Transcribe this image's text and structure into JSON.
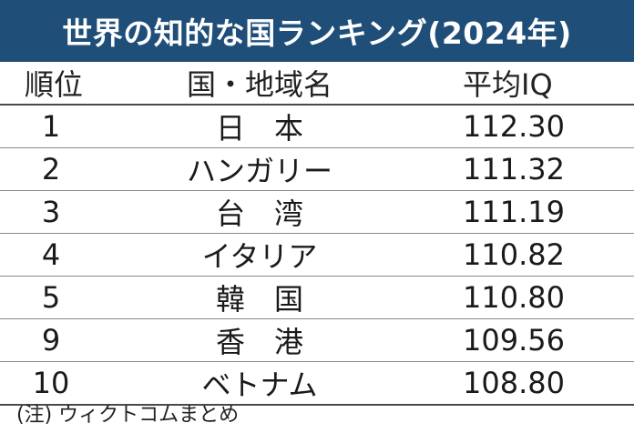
{
  "title": "世界の知的な国ランキング(2024年)",
  "headers": {
    "rank": "順位",
    "country": "国・地域名",
    "score": "平均IQ"
  },
  "rows": [
    {
      "rank": "1",
      "country": "日　本",
      "score": "112.30"
    },
    {
      "rank": "2",
      "country": "ハンガリー",
      "score": "111.32"
    },
    {
      "rank": "3",
      "country": "台　湾",
      "score": "111.19"
    },
    {
      "rank": "4",
      "country": "イタリア",
      "score": "110.82"
    },
    {
      "rank": "5",
      "country": "韓　国",
      "score": "110.80"
    },
    {
      "rank": "9",
      "country": "香　港",
      "score": "109.56"
    },
    {
      "rank": "10",
      "country": "ベトナム",
      "score": "108.80"
    }
  ],
  "note": "(注) ウィクトコムまとめ",
  "colors": {
    "title_background": "#1f4e79",
    "title_text": "#ffffff"
  }
}
